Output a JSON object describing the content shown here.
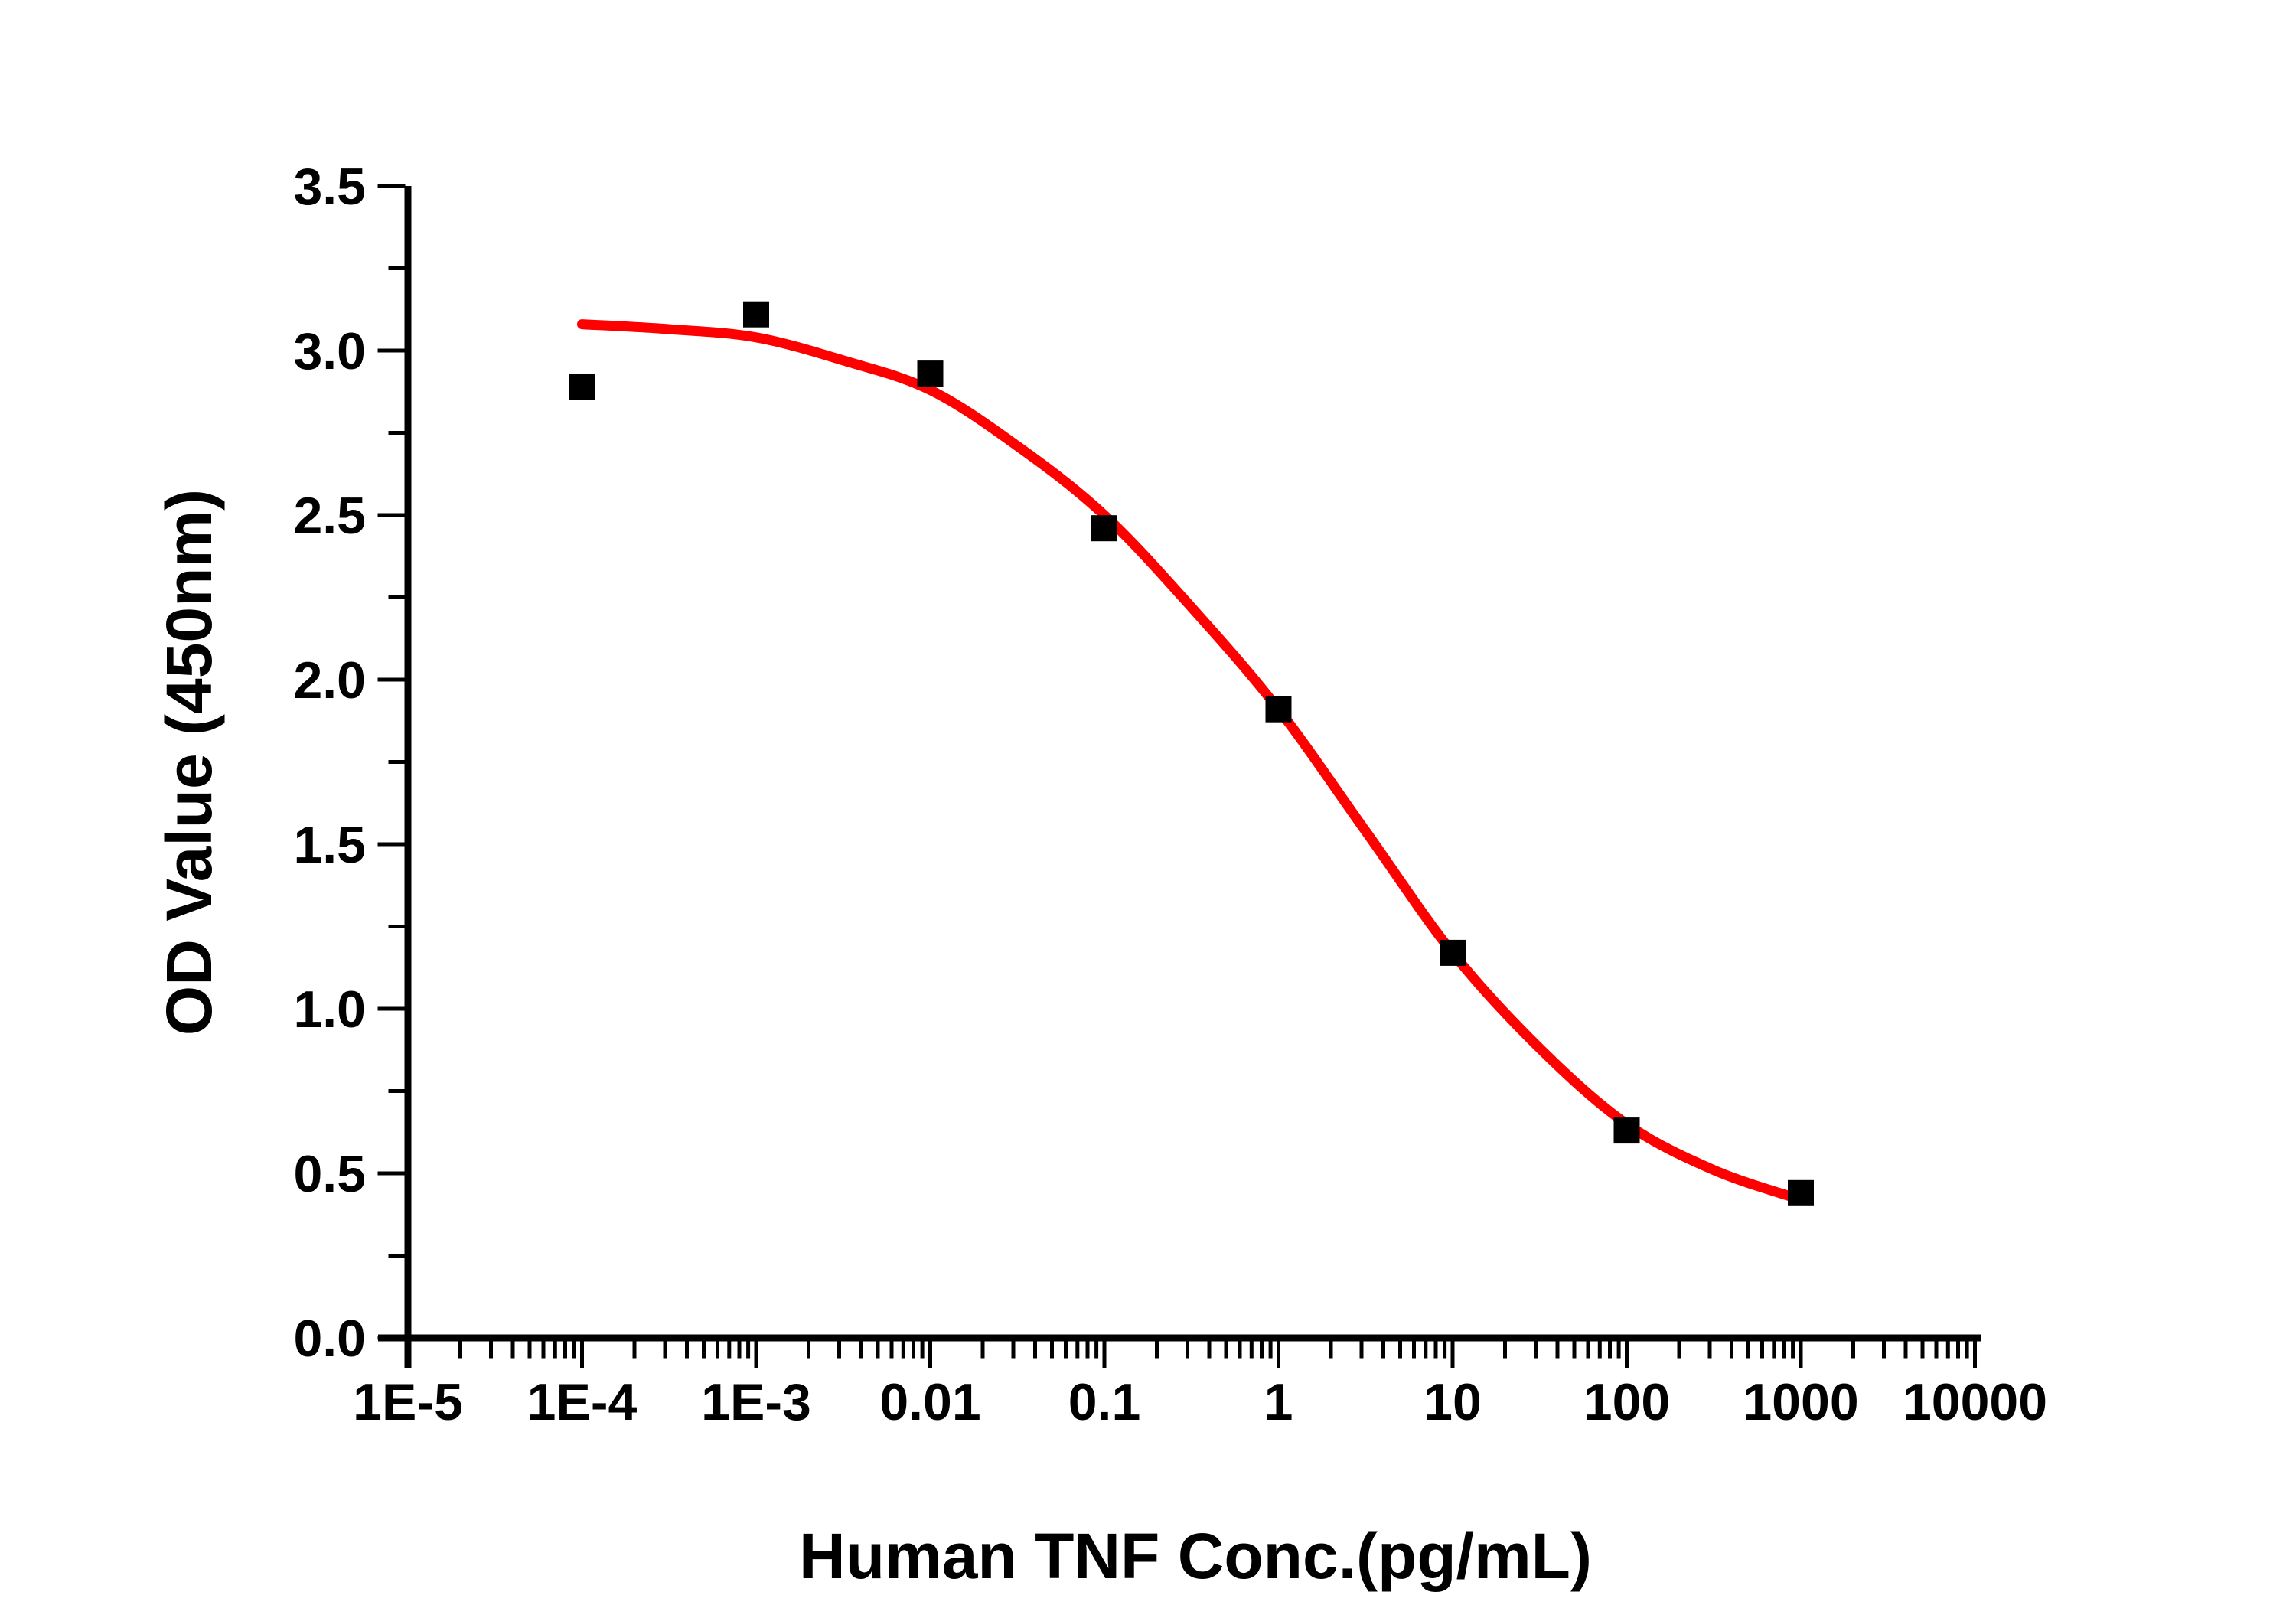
{
  "figure": {
    "background_color": "#ffffff",
    "axis_color": "#000000",
    "text_color": "#000000"
  },
  "chart_data": {
    "type": "scatter",
    "title": "",
    "xlabel": "Human TNF Conc.(pg/mL)",
    "ylabel": "OD Value (450nm)",
    "x_scale": "log10",
    "x_range_log10": [
      -5,
      4
    ],
    "y_range": [
      0.0,
      3.5
    ],
    "grid": false,
    "legend": "none",
    "x_tick_labels": [
      "1E-5",
      "1E-4",
      "1E-3",
      "0.01",
      "0.1",
      "1",
      "10",
      "100",
      "1000",
      "10000"
    ],
    "x_tick_log10": [
      -5,
      -4,
      -3,
      -2,
      -1,
      0,
      1,
      2,
      3,
      4
    ],
    "x_minor_ticks": "log-subdecades 2-9",
    "y_tick_labels": [
      "0.0",
      "0.5",
      "1.0",
      "1.5",
      "2.0",
      "2.5",
      "3.0",
      "3.5"
    ],
    "y_tick_values": [
      0.0,
      0.5,
      1.0,
      1.5,
      2.0,
      2.5,
      3.0,
      3.5
    ],
    "y_minor_step": 0.25,
    "series": [
      {
        "name": "OD measurements",
        "role": "points",
        "marker": "square",
        "color": "#000000",
        "points": [
          {
            "x": 0.0001,
            "od": 2.89
          },
          {
            "x": 0.001,
            "od": 3.11
          },
          {
            "x": 0.01,
            "od": 2.93
          },
          {
            "x": 0.1,
            "od": 2.46
          },
          {
            "x": 1,
            "od": 1.91
          },
          {
            "x": 10,
            "od": 1.17
          },
          {
            "x": 100,
            "od": 0.63
          },
          {
            "x": 1000,
            "od": 0.44
          }
        ]
      },
      {
        "name": "4PL fit curve",
        "role": "fit",
        "color": "#ff0000",
        "points": [
          {
            "log10_x": -4.0,
            "od": 3.08
          },
          {
            "log10_x": -3.5,
            "od": 3.065
          },
          {
            "log10_x": -3.0,
            "od": 3.04
          },
          {
            "log10_x": -2.5,
            "od": 2.97
          },
          {
            "log10_x": -2.0,
            "od": 2.88
          },
          {
            "log10_x": -1.5,
            "od": 2.71
          },
          {
            "log10_x": -1.0,
            "od": 2.5
          },
          {
            "log10_x": -0.5,
            "od": 2.22
          },
          {
            "log10_x": 0.0,
            "od": 1.91
          },
          {
            "log10_x": 0.5,
            "od": 1.54
          },
          {
            "log10_x": 1.0,
            "od": 1.17
          },
          {
            "log10_x": 1.5,
            "od": 0.88
          },
          {
            "log10_x": 2.0,
            "od": 0.65
          },
          {
            "log10_x": 2.5,
            "od": 0.51
          },
          {
            "log10_x": 3.0,
            "od": 0.42
          }
        ]
      }
    ]
  }
}
